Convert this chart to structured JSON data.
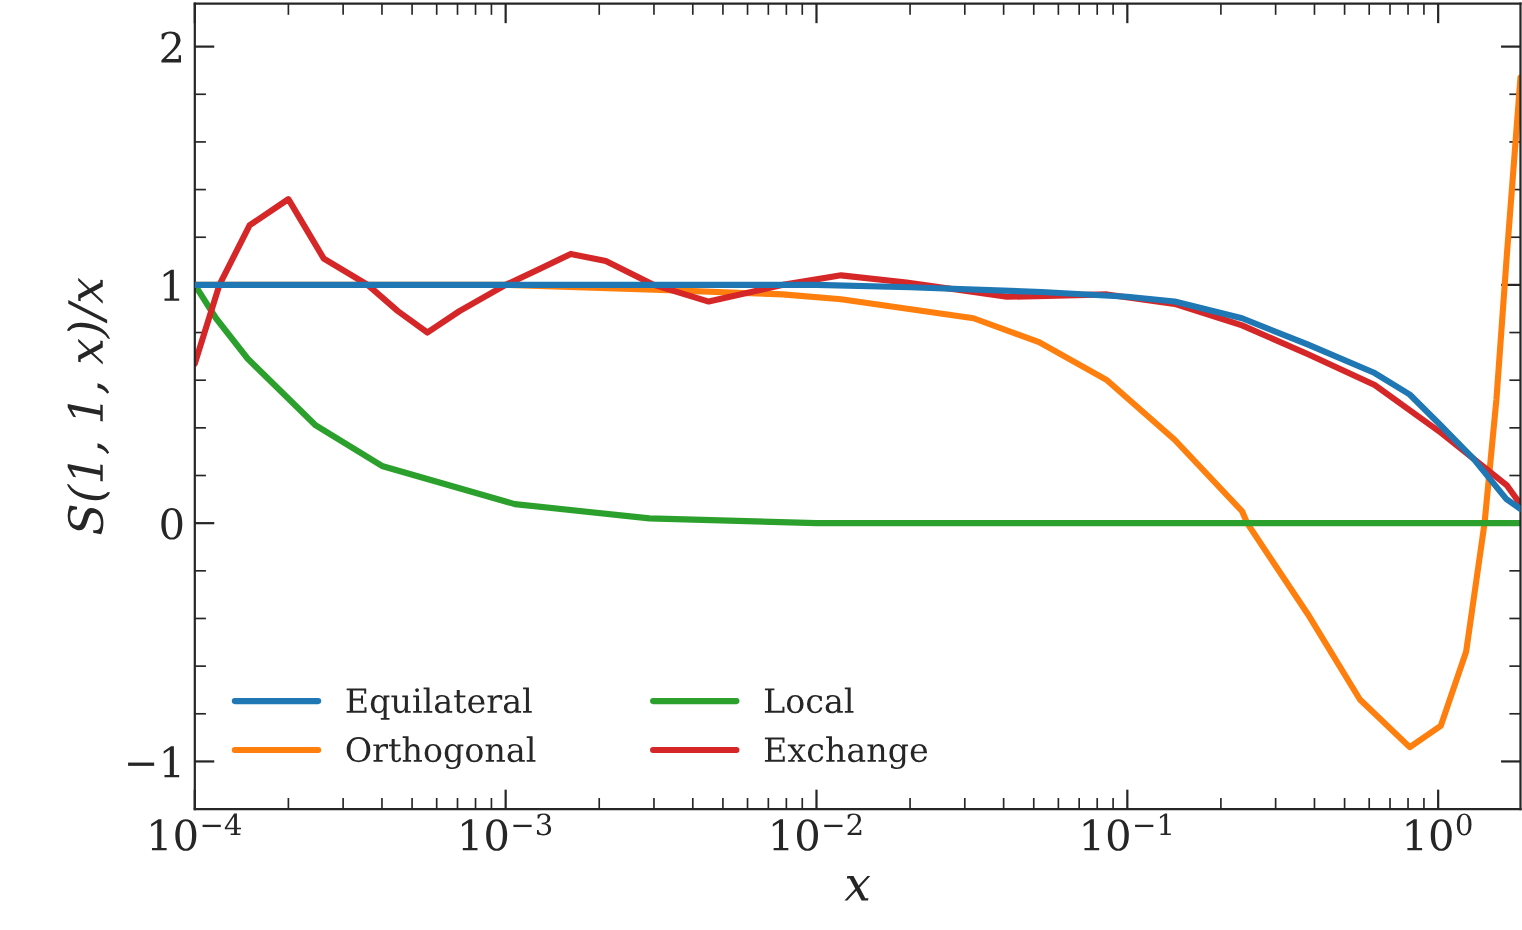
{
  "chart_data": {
    "type": "line",
    "xlabel": "x",
    "ylabel": "S(1, 1, x)/x",
    "log": "x",
    "xlim": [
      0.0001,
      1.84
    ],
    "ylim": [
      -1.2,
      2.18
    ],
    "xticks": [
      {
        "value": 0.0001,
        "label": "10$^{−4}$"
      },
      {
        "value": 0.001,
        "label": "10$^{−3}$"
      },
      {
        "value": 0.01,
        "label": "10$^{−2}$"
      },
      {
        "value": 0.1,
        "label": "10$^{−1}$"
      },
      {
        "value": 1,
        "label": "10$^{0}$"
      }
    ],
    "yticks": [
      {
        "value": -1,
        "label": "−1"
      },
      0,
      1,
      2
    ],
    "grid": false,
    "legend": "bottom left",
    "line_style": "solid",
    "marker": "none",
    "series": [
      {
        "name": "Equilateral",
        "color": "#1f77b4",
        "x": [
          0.0001,
          0.001,
          0.01,
          0.02,
          0.053,
          0.1,
          0.142,
          0.234,
          0.38,
          0.625,
          0.81,
          1.02,
          1.3,
          1.66,
          1.84
        ],
        "values": [
          1,
          1,
          1,
          0.99,
          0.97,
          0.95,
          0.93,
          0.86,
          0.75,
          0.63,
          0.54,
          0.41,
          0.27,
          0.1,
          0.06
        ]
      },
      {
        "name": "Orthogonal",
        "color": "#ff7f0e",
        "x": [
          0.0001,
          0.001,
          0.003,
          0.0078,
          0.012,
          0.032,
          0.052,
          0.086,
          0.142,
          0.234,
          0.243,
          0.38,
          0.56,
          0.81,
          1.02,
          1.23,
          1.41,
          1.54,
          1.66,
          1.84
        ],
        "values": [
          1,
          1,
          0.98,
          0.96,
          0.94,
          0.86,
          0.76,
          0.6,
          0.35,
          0.05,
          0.0,
          -0.38,
          -0.74,
          -0.94,
          -0.85,
          -0.54,
          0.0,
          0.52,
          1.11,
          1.87
        ]
      },
      {
        "name": "Local",
        "color": "#2ca02c",
        "x": [
          0.0001,
          0.000117,
          0.000148,
          0.000245,
          0.0004,
          0.00107,
          0.0029,
          0.01,
          0.1,
          1,
          1.84
        ],
        "values": [
          1,
          0.86,
          0.69,
          0.41,
          0.24,
          0.08,
          0.02,
          0,
          0,
          0,
          0
        ]
      },
      {
        "name": "Exchange",
        "color": "#d62728",
        "x": [
          0.0001,
          0.00012,
          0.00015,
          0.0002,
          0.00026,
          0.00036,
          0.00045,
          0.00056,
          0.00071,
          0.001,
          0.0013,
          0.00162,
          0.0021,
          0.003,
          0.0045,
          0.0078,
          0.012,
          0.0195,
          0.041,
          0.086,
          0.142,
          0.234,
          0.38,
          0.625,
          1.02,
          1.66,
          1.84
        ],
        "values": [
          0.67,
          1.0,
          1.25,
          1.36,
          1.11,
          1.0,
          0.89,
          0.8,
          0.89,
          1.0,
          1.07,
          1.13,
          1.1,
          1.0,
          0.93,
          1.0,
          1.04,
          1.01,
          0.95,
          0.96,
          0.92,
          0.83,
          0.71,
          0.58,
          0.38,
          0.16,
          0.08
        ]
      }
    ]
  }
}
